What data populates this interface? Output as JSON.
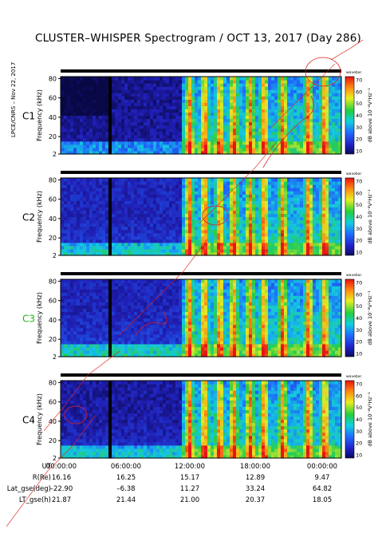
{
  "title": "CLUSTER–WHISPER Spectrogram / OCT 13, 2017 (Day 286)",
  "side_label": "LPCE/CNRS – Nov 22, 2017",
  "colorbar": {
    "top_label": "wavebar",
    "unit_label": "dB above 10⁻⁸V²Hz⁻¹",
    "ticks": [
      "70",
      "60",
      "50",
      "40",
      "30",
      "20",
      "10"
    ],
    "range": [
      10,
      70
    ]
  },
  "ephemeris": {
    "rows": [
      {
        "name": "UT",
        "values": [
          "00:00:00",
          "06:00:00",
          "12:00:00",
          "18:00:00",
          "00:00:00"
        ]
      },
      {
        "name": "R(Re)",
        "values": [
          "16.16",
          "16.25",
          "15.17",
          "12.89",
          "9.47"
        ]
      },
      {
        "name": "Lat_gse(deg)",
        "values": [
          "–22.90",
          "–6.38",
          "11.27",
          "33.24",
          "64.82"
        ]
      },
      {
        "name": "LT_gse(h)",
        "values": [
          "21.87",
          "21.44",
          "21.00",
          "20.37",
          "18.05"
        ]
      }
    ]
  },
  "chart_data": [
    {
      "type": "heatmap",
      "panel": "C1",
      "ylabel": "Frequency (kHz)",
      "yticks": [
        2,
        20,
        40,
        60,
        80
      ],
      "ylim": [
        2,
        82
      ],
      "xlim": [
        "00:00:00",
        "24:00:00"
      ],
      "zlim": [
        10,
        70
      ],
      "zlabel": "dB above 10⁻⁸V²Hz⁻¹",
      "series": [
        {
          "name": "low-frequency background",
          "x": [
            0,
            10.5
          ],
          "values": [
            12,
            14
          ]
        },
        {
          "name": "broadband emission",
          "x": [
            10.5,
            24
          ],
          "values": [
            25,
            60
          ]
        },
        {
          "name": "data gap",
          "x": [
            4.1,
            4.3
          ],
          "values": [
            0,
            0
          ]
        }
      ]
    },
    {
      "type": "heatmap",
      "panel": "C2",
      "ylabel": "Frequency (kHz)",
      "yticks": [
        2,
        20,
        40,
        60,
        80
      ],
      "ylim": [
        2,
        82
      ],
      "xlim": [
        "00:00:00",
        "24:00:00"
      ],
      "zlim": [
        10,
        70
      ],
      "zlabel": "dB above 10⁻⁸V²Hz⁻¹",
      "series": [
        {
          "name": "low-frequency background",
          "x": [
            0,
            10.5
          ],
          "values": [
            15,
            20
          ]
        },
        {
          "name": "broadband emission",
          "x": [
            10.5,
            24
          ],
          "values": [
            25,
            60
          ]
        },
        {
          "name": "data gap",
          "x": [
            4.1,
            4.3
          ],
          "values": [
            0,
            0
          ]
        }
      ]
    },
    {
      "type": "heatmap",
      "panel": "C3",
      "ylabel": "Frequency (kHz)",
      "yticks": [
        2,
        20,
        40,
        60,
        80
      ],
      "ylim": [
        2,
        82
      ],
      "xlim": [
        "00:00:00",
        "24:00:00"
      ],
      "zlim": [
        10,
        70
      ],
      "zlabel": "dB above 10⁻⁸V²Hz⁻¹",
      "series": [
        {
          "name": "low-frequency background",
          "x": [
            0,
            10.5
          ],
          "values": [
            15,
            22
          ]
        },
        {
          "name": "broadband emission",
          "x": [
            10.5,
            24
          ],
          "values": [
            25,
            60
          ]
        },
        {
          "name": "data gap",
          "x": [
            4.1,
            4.3
          ],
          "values": [
            0,
            0
          ]
        }
      ]
    },
    {
      "type": "heatmap",
      "panel": "C4",
      "ylabel": "Frequency (kHz)",
      "yticks": [
        2,
        20,
        40,
        60,
        80
      ],
      "ylim": [
        2,
        82
      ],
      "xlim": [
        "00:00:00",
        "24:00:00"
      ],
      "zlim": [
        10,
        70
      ],
      "zlabel": "dB above 10⁻⁸V²Hz⁻¹",
      "series": [
        {
          "name": "low-frequency background",
          "x": [
            0,
            10.5
          ],
          "values": [
            13,
            20
          ]
        },
        {
          "name": "broadband emission",
          "x": [
            10.5,
            24
          ],
          "values": [
            25,
            60
          ]
        },
        {
          "name": "data gap",
          "x": [
            4.1,
            4.3
          ],
          "values": [
            0,
            0
          ]
        }
      ]
    }
  ],
  "panel_label_colors": [
    "#000000",
    "#000000",
    "#18b818",
    "#000000"
  ],
  "watermark_color": "#e0201a"
}
